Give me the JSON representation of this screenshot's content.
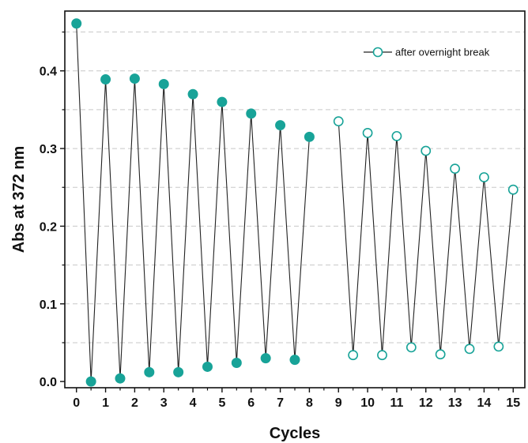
{
  "chart_data": {
    "type": "line",
    "xlabel": "Cycles",
    "ylabel": "Abs at 372 nm",
    "xlim": [
      -0.4,
      15.4
    ],
    "ylim": [
      -0.008,
      0.477
    ],
    "x_ticks": [
      0,
      1,
      2,
      3,
      4,
      5,
      6,
      7,
      8,
      9,
      10,
      11,
      12,
      13,
      14,
      15
    ],
    "x_tick_labels": [
      "0",
      "1",
      "2",
      "3",
      "4",
      "5",
      "6",
      "7",
      "8",
      "9",
      "10",
      "11",
      "12",
      "13",
      "14",
      "15"
    ],
    "y_ticks": [
      0.0,
      0.1,
      0.2,
      0.3,
      0.4
    ],
    "y_tick_labels": [
      "0.0",
      "0.1",
      "0.2",
      "0.3",
      "0.4"
    ],
    "grid": "horizontal dashed",
    "legend_position": "top-right",
    "colors": {
      "filled": "#18a398",
      "open_stroke": "#18a398",
      "line": "#222222",
      "grid": "#c8c8c8"
    },
    "series": [
      {
        "name": "",
        "marker": "filled-circle",
        "x": [
          0,
          0.5,
          1,
          1.5,
          2,
          2.5,
          3,
          3.5,
          4,
          4.5,
          5,
          5.5,
          6,
          6.5,
          7,
          7.5,
          8
        ],
        "y": [
          0.461,
          0.0,
          0.389,
          0.004,
          0.39,
          0.012,
          0.383,
          0.012,
          0.37,
          0.019,
          0.36,
          0.024,
          0.345,
          0.03,
          0.33,
          0.028,
          0.315
        ]
      },
      {
        "name": "after overnight break",
        "marker": "open-circle",
        "x": [
          9,
          9.5,
          10,
          10.5,
          11,
          11.5,
          12,
          12.5,
          13,
          13.5,
          14,
          14.5,
          15
        ],
        "y": [
          0.335,
          0.034,
          0.32,
          0.034,
          0.316,
          0.044,
          0.297,
          0.035,
          0.274,
          0.042,
          0.263,
          0.045,
          0.247
        ]
      }
    ]
  }
}
